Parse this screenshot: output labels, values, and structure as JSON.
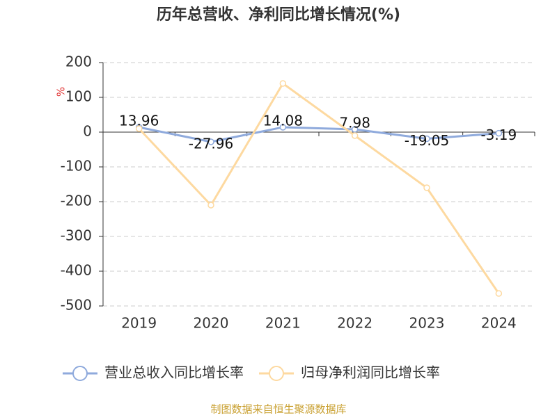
{
  "chart_data": {
    "type": "line",
    "title": "历年总营收、净利同比增长情况(%)",
    "y_label": "%",
    "categories": [
      "2019",
      "2020",
      "2021",
      "2022",
      "2023",
      "2024"
    ],
    "series": [
      {
        "name": "营业总收入同比增长率",
        "color": "#8faadc",
        "values": [
          13.96,
          -27.96,
          14.08,
          7.98,
          -19.05,
          -3.19
        ],
        "show_labels": true
      },
      {
        "name": "归母净利润同比增长率",
        "color": "#fdd9a0",
        "values": [
          10,
          -210,
          140,
          -10,
          -160,
          -464
        ],
        "show_labels": false
      }
    ],
    "ylim": [
      -500,
      200
    ],
    "yticks": [
      -500,
      -400,
      -300,
      -200,
      -100,
      0,
      100,
      200
    ],
    "grid": true,
    "legend": "bottom",
    "source": "制图数据来自恒生聚源数据库"
  }
}
